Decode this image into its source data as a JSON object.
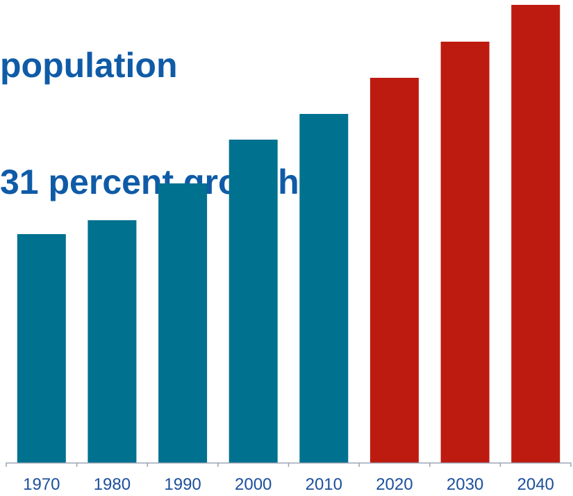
{
  "chart_data": {
    "type": "bar",
    "title_lines": [
      "population",
      "31 percent growth"
    ],
    "categories": [
      "1970",
      "1980",
      "1990",
      "2000",
      "2010",
      "2020",
      "2030",
      "2040"
    ],
    "values": [
      329,
      349,
      402,
      465,
      502,
      554,
      606,
      659
    ],
    "ylim": [
      0,
      659
    ],
    "xlabel": "",
    "ylabel": "",
    "grid": false,
    "legend": "none",
    "series_colors": {
      "historical": "#00718f",
      "projected": "#be1b10"
    },
    "projected_from": "2020",
    "title_color": "#0f5ba7",
    "axis_color": "#9aa3b5",
    "tick_label_color": "#1c4f9c"
  }
}
